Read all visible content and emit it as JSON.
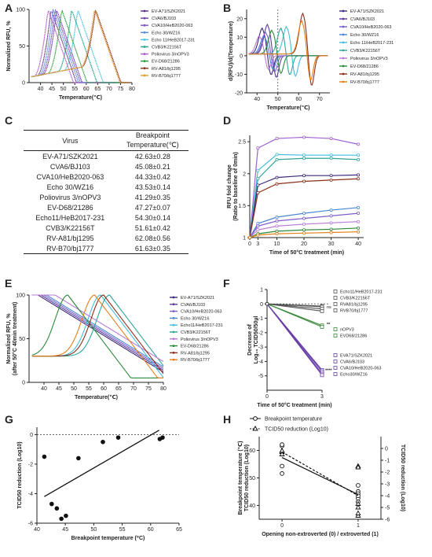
{
  "panel_letters": [
    "A",
    "B",
    "C",
    "D",
    "E",
    "F",
    "G",
    "H"
  ],
  "chart_data": [
    {
      "id": "A",
      "type": "line",
      "xlabel": "Temperature(℃)",
      "ylabel": "Normalized RFU, %",
      "xlim": [
        35,
        80
      ],
      "ylim": [
        0,
        100
      ],
      "xticks": [
        40,
        45,
        50,
        55,
        60,
        65,
        70,
        75,
        80
      ],
      "yticks": [
        0,
        50,
        100
      ],
      "series": [
        {
          "name": "EV-A71/SZK2021",
          "color": "#5a2d82",
          "bp": 42.63
        },
        {
          "name": "CVA6/BJ103",
          "color": "#6a3fa8",
          "bp": 45.08
        },
        {
          "name": "CVA10/HeB2020-063",
          "color": "#7b52c7",
          "bp": 44.33
        },
        {
          "name": "Echo 30/WZ16",
          "color": "#4e8fd6",
          "bp": 43.53
        },
        {
          "name": "Echo 11/HeB2017-231",
          "color": "#4cc3e0",
          "bp": 54.3
        },
        {
          "name": "CVB3/K22156T",
          "color": "#1fa38a",
          "bp": 51.61
        },
        {
          "name": "Poliovirus 3/nOPV3",
          "color": "#b05cc8",
          "bp": 41.29
        },
        {
          "name": "EV-D68/21286",
          "color": "#2c9f3e",
          "bp": 47.27
        },
        {
          "name": "RV-A81/bj1295",
          "color": "#8b2f1a",
          "bp": 62.08
        },
        {
          "name": "RV-B70/bj1777",
          "color": "#e69a2e",
          "bp": 61.63
        }
      ]
    },
    {
      "id": "B",
      "type": "line",
      "xlabel": "Temperature(℃)",
      "ylabel": "d(RFU)/d(Temperature)",
      "xlim": [
        35,
        75
      ],
      "ylim": [
        -20,
        25
      ],
      "xticks": [
        40,
        50,
        60,
        70
      ],
      "yticks": [
        -20,
        -10,
        0,
        10,
        20
      ],
      "vline": 50,
      "series": [
        {
          "name": "EV-A71/SZK2021",
          "color": "#3d2a78",
          "peak": 42.6,
          "amp": 14
        },
        {
          "name": "CVA6/BJ103",
          "color": "#5b3da0",
          "peak": 45.1,
          "amp": 16
        },
        {
          "name": "CVA10/HeB2020-063",
          "color": "#7d5dc9",
          "peak": 44.3,
          "amp": 12
        },
        {
          "name": "Echo 30/WZ16",
          "color": "#4a86d2",
          "peak": 43.5,
          "amp": 10
        },
        {
          "name": "Echo 11/HeB2017-231",
          "color": "#45bde0",
          "peak": 54.3,
          "amp": 15
        },
        {
          "name": "CVB3/K22156T",
          "color": "#2fa59a",
          "peak": 51.6,
          "amp": 14
        },
        {
          "name": "Poliovirus 3/nOPV3",
          "color": "#b87ad6",
          "peak": 41.3,
          "amp": 10
        },
        {
          "name": "EV-D68/21286",
          "color": "#2b8a3a",
          "peak": 47.3,
          "amp": 13
        },
        {
          "name": "RV-A81/bj1295",
          "color": "#8b2f1a",
          "peak": 62.1,
          "amp": 22
        },
        {
          "name": "RV-B70/bj1777",
          "color": "#e3801c",
          "peak": 61.6,
          "amp": 18
        }
      ]
    },
    {
      "id": "C",
      "type": "table",
      "columns": [
        "Virus",
        "Breakpoint",
        "Temperature(℃)"
      ],
      "rows": [
        [
          "EV-A71/SZK2021",
          "42.63±0.28"
        ],
        [
          "CVA6/BJ103",
          "45.08±0.21"
        ],
        [
          "CVA10/HeB2020-063",
          "44.33±0.42"
        ],
        [
          "Echo 30/WZ16",
          "43.53±0.14"
        ],
        [
          "Poliovirus 3/nOPV3",
          "41.29±0.35"
        ],
        [
          "EV-D68/21286",
          "47.27±0.07"
        ],
        [
          "Echo11/HeB2017-231",
          "54.30±0.14"
        ],
        [
          "CVB3/K22156T",
          "51.61±0.42"
        ],
        [
          "RV-A81/bj1295",
          "62.08±0.56"
        ],
        [
          "RV-B70/bj1777",
          "61.63±0.35"
        ]
      ]
    },
    {
      "id": "D",
      "type": "line",
      "xlabel": "Time of 50°C treatment (min)",
      "ylabel": "RFU fold change",
      "ylabel2": "(Ratio to baseline of 0min)",
      "xlim": [
        0,
        42
      ],
      "ylim": [
        1.0,
        2.6
      ],
      "xticks": [
        0,
        3,
        10,
        20,
        30,
        40
      ],
      "yticks": [
        1.0,
        1.5,
        2.0,
        2.5
      ],
      "x": [
        0,
        3,
        10,
        20,
        30,
        40
      ],
      "series": [
        {
          "color": "#a060d0",
          "values": [
            1.0,
            2.4,
            2.55,
            2.57,
            2.55,
            2.46
          ]
        },
        {
          "color": "#45bde0",
          "values": [
            1.0,
            2.05,
            2.3,
            2.29,
            2.29,
            2.29
          ]
        },
        {
          "color": "#2fa59a",
          "values": [
            1.0,
            1.92,
            2.22,
            2.24,
            2.24,
            2.22
          ]
        },
        {
          "color": "#3d2a78",
          "values": [
            1.0,
            1.82,
            1.94,
            1.97,
            1.97,
            1.98
          ]
        },
        {
          "color": "#8b2f1a",
          "values": [
            1.0,
            1.7,
            1.84,
            1.88,
            1.9,
            1.92
          ]
        },
        {
          "color": "#4a86d2",
          "values": [
            1.0,
            1.22,
            1.32,
            1.38,
            1.43,
            1.47
          ]
        },
        {
          "color": "#7d5dc9",
          "values": [
            1.0,
            1.18,
            1.26,
            1.3,
            1.34,
            1.38
          ]
        },
        {
          "color": "#b87ad6",
          "values": [
            1.0,
            1.12,
            1.18,
            1.21,
            1.23,
            1.25
          ]
        },
        {
          "color": "#2b8a3a",
          "values": [
            1.0,
            1.06,
            1.1,
            1.12,
            1.13,
            1.15
          ]
        },
        {
          "color": "#e3801c",
          "values": [
            1.0,
            1.04,
            1.06,
            1.07,
            1.08,
            1.09
          ]
        }
      ]
    },
    {
      "id": "E",
      "type": "line",
      "xlabel": "Temperature(℃)",
      "ylabel": "Normalized RFU, %",
      "ylabel2": "(after 50°C 40min treatment)",
      "xlim": [
        35,
        80
      ],
      "ylim": [
        0,
        100
      ],
      "xticks": [
        40,
        45,
        50,
        55,
        60,
        65,
        70,
        75,
        80
      ],
      "yticks": [
        0,
        50,
        100
      ],
      "series": [
        {
          "name": "EV-A71/SZK2021",
          "color": "#3d2a78"
        },
        {
          "name": "CVA6/BJ103",
          "color": "#5b3da0"
        },
        {
          "name": "CVA10/HeB2020-063",
          "color": "#7d5dc9"
        },
        {
          "name": "Echo 30/WZ16",
          "color": "#4a86d2"
        },
        {
          "name": "Echo11/HeB2017-231",
          "color": "#45bde0"
        },
        {
          "name": "CVB3/K22156T",
          "color": "#2fa59a"
        },
        {
          "name": "Poliovirus 3/nOPV3",
          "color": "#b87ad6"
        },
        {
          "name": "EV-D68/21286",
          "color": "#2b8a3a"
        },
        {
          "name": "RV-A81/bj1295",
          "color": "#8b2f1a"
        },
        {
          "name": "RV-B70/bj1777",
          "color": "#e3801c"
        }
      ]
    },
    {
      "id": "F",
      "type": "line",
      "xlabel": "Time of 50°C treatment (min)",
      "ylabel": "Decrease of",
      "ylabel2": "Log₁₀ TCID50/50µl",
      "xlim": [
        0,
        3
      ],
      "ylim": [
        -6,
        1
      ],
      "xticks": [
        0,
        3
      ],
      "yticks": [
        -5,
        -4,
        -3,
        -2,
        -1,
        0,
        1
      ],
      "annotations": [
        "ns",
        "**",
        "****"
      ],
      "groups": [
        {
          "names": [
            "Echo11/HeB2017-231",
            "CVB3/K22156T",
            "RVA81/bj1295",
            "RVB70/bj1777"
          ],
          "end": [
            -0.15,
            -0.2,
            -0.35,
            -0.5
          ],
          "color": "#555"
        },
        {
          "names": [
            "nOPV3",
            "EVD68/21286"
          ],
          "end": [
            -1.5,
            -1.6
          ],
          "color": "#3a8a3a"
        },
        {
          "names": [
            "EVA71/SZK2021",
            "CVA6/BJ103",
            "CVA10/HeB2020-063",
            "Echo30/WZ16"
          ],
          "end": [
            -4.6,
            -4.7,
            -4.85,
            -4.95
          ],
          "color": "#6a3fa8"
        }
      ]
    },
    {
      "id": "G",
      "type": "scatter",
      "xlabel": "Breakpoint temperature (⁰C)",
      "ylabel": "TCID50 reduction (Log10)",
      "xlim": [
        40,
        65
      ],
      "ylim": [
        -6,
        0.5
      ],
      "xticks": [
        40,
        45,
        50,
        55,
        60,
        65
      ],
      "yticks": [
        -6,
        -4,
        -2,
        0
      ],
      "points": [
        [
          41.3,
          -1.5
        ],
        [
          42.6,
          -4.7
        ],
        [
          43.5,
          -5.0
        ],
        [
          44.3,
          -5.7
        ],
        [
          45.1,
          -5.5
        ],
        [
          47.3,
          -1.6
        ],
        [
          51.6,
          -0.5
        ],
        [
          54.3,
          -0.2
        ],
        [
          61.6,
          -0.3
        ],
        [
          62.1,
          -0.2
        ]
      ],
      "fit": [
        [
          41.3,
          -4.2
        ],
        [
          61.5,
          0.3
        ]
      ]
    },
    {
      "id": "H",
      "type": "scatter",
      "xlabel": "Opening non-extroverted (0) / extroverted (1)",
      "ylabel": "Breakpoint temperature (℃)",
      "ylabel2": "TCID50 reduction (Log10)",
      "xlim": [
        -0.3,
        1.3
      ],
      "ylim": [
        35,
        65
      ],
      "y2lim": [
        -6,
        1
      ],
      "xticks": [
        0,
        1
      ],
      "yticks": [
        40,
        50,
        60
      ],
      "y2ticks": [
        0,
        -1,
        -2,
        -3,
        -4,
        -5,
        -6
      ],
      "legend": [
        "Breakpoint temperature",
        "TCID50 reduction (Log10)"
      ],
      "bp_points": [
        [
          0,
          61.6
        ],
        [
          0,
          62.1
        ],
        [
          0,
          54.3
        ],
        [
          0,
          51.6
        ],
        [
          1,
          42.6
        ],
        [
          1,
          45.1
        ],
        [
          1,
          44.3
        ],
        [
          1,
          43.5
        ],
        [
          1,
          41.3
        ],
        [
          1,
          47.3
        ]
      ],
      "bp_fit": [
        [
          0,
          57.4
        ],
        [
          1,
          44.0
        ]
      ],
      "tc_points": [
        [
          0,
          -0.2
        ],
        [
          0,
          -0.3
        ],
        [
          0,
          -0.5
        ],
        [
          0,
          -0.2
        ],
        [
          1,
          -1.5
        ],
        [
          1,
          -4.7
        ],
        [
          1,
          -5.0
        ],
        [
          1,
          -5.7
        ],
        [
          1,
          -5.5
        ],
        [
          1,
          -1.6
        ]
      ],
      "tc_fit": [
        [
          0,
          -0.3
        ],
        [
          1,
          -4.0
        ]
      ]
    }
  ]
}
